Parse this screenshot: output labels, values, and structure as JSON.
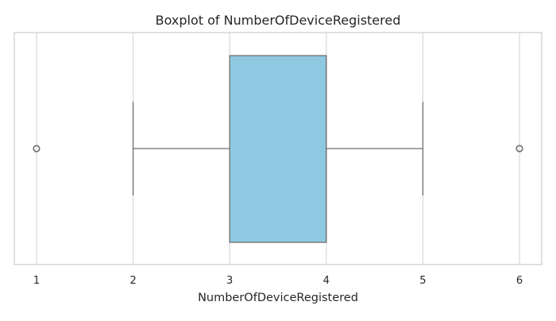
{
  "chart_data": {
    "type": "boxplot",
    "orientation": "horizontal",
    "title": "Boxplot of NumberOfDeviceRegistered",
    "xlabel": "NumberOfDeviceRegistered",
    "ylabel": "",
    "xlim": [
      0.77,
      6.23
    ],
    "xticks": [
      1,
      2,
      3,
      4,
      5,
      6
    ],
    "grid": true,
    "box": {
      "whisker_low": 2,
      "q1": 3,
      "median": 4,
      "q3": 4,
      "whisker_high": 5,
      "outliers": [
        1,
        6
      ]
    },
    "colors": {
      "box_fill": "#8fc9e1",
      "line": "#6e6e6e",
      "grid": "#d9d9d9",
      "frame": "#cccccc"
    }
  }
}
